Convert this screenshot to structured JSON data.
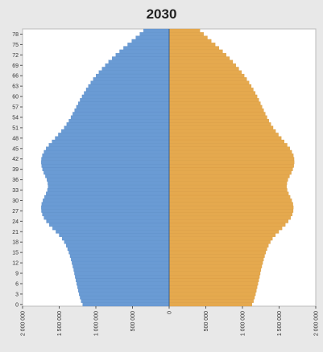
{
  "chart_data": {
    "type": "bar",
    "orientation": "horizontal",
    "variant": "population-pyramid",
    "title": "2030",
    "xlabel": "",
    "ylabel": "",
    "y_tick_labels": [
      "0",
      "3",
      "6",
      "9",
      "12",
      "15",
      "18",
      "21",
      "24",
      "27",
      "30",
      "33",
      "36",
      "39",
      "42",
      "45",
      "48",
      "51",
      "54",
      "57",
      "60",
      "63",
      "66",
      "69",
      "72",
      "75",
      "78"
    ],
    "x_tick_labels": [
      "2 000 000",
      "1 500 000",
      "1 000 000",
      "500 000",
      "0",
      "500 000",
      "1 000 000",
      "1 500 000",
      "2 000 000"
    ],
    "xlim": [
      -2000000,
      2000000
    ],
    "grid": false,
    "colors": {
      "left": "#6a9bd4",
      "right": "#e5a94e",
      "background": "#ffffff",
      "figure": "#e8e8e8"
    },
    "ages": [
      0,
      1,
      2,
      3,
      4,
      5,
      6,
      7,
      8,
      9,
      10,
      11,
      12,
      13,
      14,
      15,
      16,
      17,
      18,
      19,
      20,
      21,
      22,
      23,
      24,
      25,
      26,
      27,
      28,
      29,
      30,
      31,
      32,
      33,
      34,
      35,
      36,
      37,
      38,
      39,
      40,
      41,
      42,
      43,
      44,
      45,
      46,
      47,
      48,
      49,
      50,
      51,
      52,
      53,
      54,
      55,
      56,
      57,
      58,
      59,
      60,
      61,
      62,
      63,
      64,
      65,
      66,
      67,
      68,
      69,
      70,
      71,
      72,
      73,
      74,
      75,
      76,
      77,
      78,
      79
    ],
    "series": [
      {
        "side": "left",
        "values": [
          1180000,
          1200000,
          1215000,
          1228000,
          1240000,
          1250000,
          1262000,
          1272000,
          1282000,
          1292000,
          1302000,
          1314000,
          1326000,
          1338000,
          1352000,
          1368000,
          1385000,
          1405000,
          1430000,
          1460000,
          1500000,
          1545000,
          1590000,
          1635000,
          1675000,
          1708000,
          1730000,
          1742000,
          1744000,
          1738000,
          1722000,
          1700000,
          1678000,
          1660000,
          1652000,
          1655000,
          1668000,
          1688000,
          1710000,
          1728000,
          1740000,
          1745000,
          1742000,
          1730000,
          1708000,
          1678000,
          1640000,
          1598000,
          1555000,
          1512000,
          1470000,
          1432000,
          1398000,
          1368000,
          1340000,
          1315000,
          1290000,
          1265000,
          1240000,
          1215000,
          1188000,
          1160000,
          1132000,
          1102000,
          1070000,
          1035000,
          998000,
          958000,
          916000,
          872000,
          826000,
          778000,
          728000,
          676000,
          622000,
          566000,
          510000,
          455000,
          400000,
          350000
        ]
      },
      {
        "side": "right",
        "values": [
          1130000,
          1150000,
          1165000,
          1178000,
          1190000,
          1200000,
          1212000,
          1222000,
          1232000,
          1242000,
          1252000,
          1264000,
          1276000,
          1288000,
          1302000,
          1318000,
          1335000,
          1355000,
          1380000,
          1410000,
          1450000,
          1495000,
          1540000,
          1585000,
          1625000,
          1658000,
          1680000,
          1692000,
          1694000,
          1688000,
          1672000,
          1650000,
          1628000,
          1610000,
          1602000,
          1606000,
          1620000,
          1642000,
          1666000,
          1686000,
          1700000,
          1706000,
          1704000,
          1694000,
          1674000,
          1646000,
          1610000,
          1570000,
          1530000,
          1490000,
          1452000,
          1418000,
          1388000,
          1360000,
          1335000,
          1312000,
          1290000,
          1268000,
          1246000,
          1224000,
          1200000,
          1175000,
          1148000,
          1120000,
          1090000,
          1058000,
          1024000,
          988000,
          950000,
          910000,
          868000,
          824000,
          778000,
          730000,
          680000,
          628000,
          575000,
          522000,
          470000,
          420000
        ]
      }
    ]
  }
}
